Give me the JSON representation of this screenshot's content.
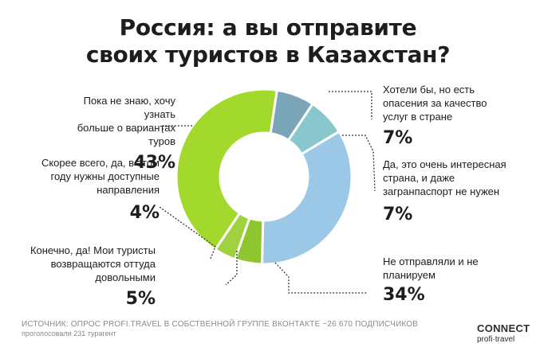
{
  "title_lines": [
    "Россия: а вы отправите",
    "своих туристов в Казахстан?"
  ],
  "chart_data": {
    "type": "donut",
    "title": "Россия: а вы отправите своих туристов в Казахстан?",
    "categories": [
      "Хотели бы, но есть опасения за качество услуг в стране",
      "Да, это очень интересная страна, и даже загранпаспорт не нужен",
      "Не отправляли и не планируем",
      "Конечно, да! Мои туристы возвращаются оттуда довольными",
      "Скорее всего, да, в этом году нужны доступные направления",
      "Пока не знаю, хочу узнать больше о вариантах туров"
    ],
    "values": [
      7,
      7,
      34,
      5,
      4,
      43
    ],
    "value_labels": [
      "7%",
      "7%",
      "34%",
      "5%",
      "4%",
      "43%"
    ],
    "colors": [
      "#7aa5b9",
      "#88c7cd",
      "#9ac8e6",
      "#8fc62f",
      "#a0d23f",
      "#a3d92c"
    ]
  },
  "labels": {
    "opaseniya": {
      "lines": [
        "Хотели бы, но есть",
        "опасения за качество",
        "услуг в стране"
      ],
      "pct": "7%"
    },
    "interesnaya": {
      "lines": [
        "Да, это очень интересная",
        "страна, и даже",
        "загранпаспорт не нужен"
      ],
      "pct": "7%"
    },
    "ne_otpravlyali": {
      "lines": [
        "Не отправляли и не",
        "планируем"
      ],
      "pct": "34%"
    },
    "konechno": {
      "lines": [
        "Конечно, да! Мои туристы",
        "возвращаются оттуда",
        "довольными"
      ],
      "pct": "5%"
    },
    "skoree": {
      "lines": [
        "Скорее всего, да, в этом",
        "году нужны доступные",
        "направления"
      ],
      "pct": "4%"
    },
    "poka": {
      "lines": [
        "Пока не знаю, хочу узнать",
        "больше о вариантах туров"
      ],
      "pct": "43%"
    }
  },
  "source": "ИСТОЧНИК: ОПРОС PROFI.TRAVEL В СОБСТВЕННОЙ ГРУППЕ ВКОНТАКТЕ ~26 670 ПОДПИСЧИКОВ",
  "source_sub": "проголосовали 231 турагент",
  "logo": {
    "line1": "CONNECT",
    "line2": "profi·travel"
  }
}
